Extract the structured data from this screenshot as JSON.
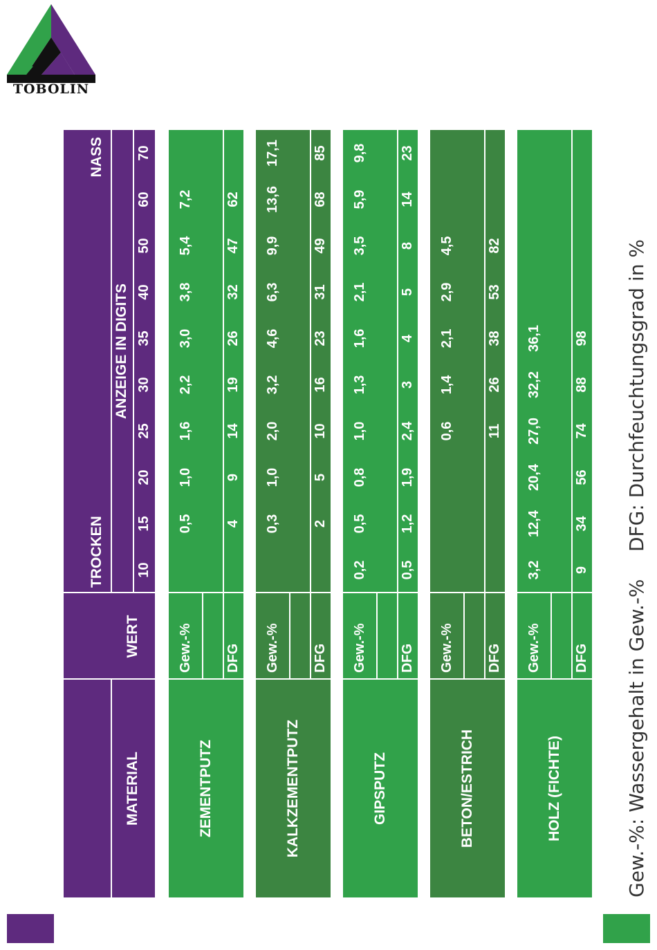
{
  "brand": {
    "name": "TOBOLIN",
    "colors": {
      "purple": "#5e2a7e",
      "green_light": "#31a24a",
      "green_dark": "#3c8541",
      "black": "#111111"
    }
  },
  "table": {
    "header": {
      "material": "MATERIAL",
      "wert": "WERT",
      "trocken": "TROCKEN",
      "anzeige": "ANZEIGE IN DIGITS",
      "nass": "NASS",
      "digits": [
        "10",
        "15",
        "20",
        "25",
        "30",
        "35",
        "40",
        "50",
        "60",
        "70"
      ]
    },
    "materials": [
      {
        "name": "ZEMENTPUTZ",
        "shade": "light",
        "gew_label": "Gew.-%",
        "dfg_label": "DFG",
        "gew": [
          "",
          "0,5",
          "1,0",
          "1,6",
          "2,2",
          "3,0",
          "3,8",
          "5,4",
          "7,2",
          ""
        ],
        "dfg": [
          "",
          "4",
          "9",
          "14",
          "19",
          "26",
          "32",
          "47",
          "62",
          ""
        ]
      },
      {
        "name": "KALKZEMENTPUTZ",
        "shade": "dark",
        "gew_label": "Gew.-%",
        "dfg_label": "DFG",
        "gew": [
          "",
          "0,3",
          "1,0",
          "2,0",
          "3,2",
          "4,6",
          "6,3",
          "9,9",
          "13,6",
          "17,1"
        ],
        "dfg": [
          "",
          "2",
          "5",
          "10",
          "16",
          "23",
          "31",
          "49",
          "68",
          "85"
        ]
      },
      {
        "name": "GIPSPUTZ",
        "shade": "light",
        "gew_label": "Gew.-%",
        "dfg_label": "DFG",
        "gew": [
          "0,2",
          "0,5",
          "0,8",
          "1,0",
          "1,3",
          "1,6",
          "2,1",
          "3,5",
          "5,9",
          "9,8"
        ],
        "dfg": [
          "0,5",
          "1,2",
          "1,9",
          "2,4",
          "3",
          "4",
          "5",
          "8",
          "14",
          "23"
        ]
      },
      {
        "name": "BETON/ESTRICH",
        "shade": "dark",
        "gew_label": "Gew.-%",
        "dfg_label": "DFG",
        "gew": [
          "",
          "",
          "",
          "0,6",
          "1,4",
          "2,1",
          "2,9",
          "4,5",
          "",
          ""
        ],
        "dfg": [
          "",
          "",
          "",
          "11",
          "26",
          "38",
          "53",
          "82",
          "",
          ""
        ]
      },
      {
        "name": "HOLZ (FICHTE)",
        "shade": "light",
        "gew_label": "Gew.-%",
        "dfg_label": "DFG",
        "gew": [
          "3,2",
          "12,4",
          "20,4",
          "27,0",
          "32,2",
          "36,1",
          "",
          "",
          "",
          ""
        ],
        "dfg": [
          "9",
          "34",
          "56",
          "74",
          "88",
          "98",
          "",
          "",
          "",
          ""
        ]
      }
    ]
  },
  "footnotes": {
    "gew": "Gew.-%: Wassergehalt in Gew.-%",
    "dfg": "DFG: Durchfeuchtungsgrad in %"
  }
}
